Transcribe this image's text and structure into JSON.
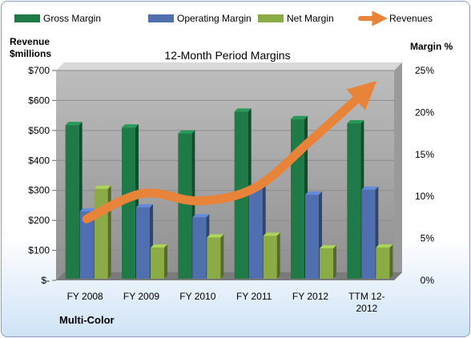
{
  "chart_data": {
    "type": "bar",
    "title": "12-Month Period Margins",
    "company": "Multi-Color",
    "ylabel_left": [
      "Revenue",
      "$millions"
    ],
    "ylabel_right": "Margin %",
    "categories": [
      "FY 2008",
      "FY 2009",
      "FY 2010",
      "FY 2011",
      "FY 2012",
      "TTM 12-2012"
    ],
    "category_lines": [
      [
        "FY 2008"
      ],
      [
        "FY 2009"
      ],
      [
        "FY 2010"
      ],
      [
        "FY 2011"
      ],
      [
        "FY 2012"
      ],
      [
        "TTM 12-",
        "2012"
      ]
    ],
    "left_axis": {
      "min": 0,
      "max": 700,
      "ticks": [
        0,
        100,
        200,
        300,
        400,
        500,
        600,
        700
      ],
      "tick_labels": [
        "$-",
        "$100",
        "$200",
        "$300",
        "$400",
        "$500",
        "$600",
        "$700"
      ]
    },
    "right_axis": {
      "min": 0,
      "max": 25,
      "ticks": [
        0,
        5,
        10,
        15,
        20,
        25
      ],
      "tick_labels": [
        "0%",
        "5%",
        "10%",
        "15%",
        "20%",
        "25%"
      ]
    },
    "series": [
      {
        "name": "Gross Margin",
        "axis": "right",
        "color": "#1f7a47",
        "values": [
          18.5,
          18.2,
          17.5,
          20.1,
          19.2,
          18.7
        ]
      },
      {
        "name": "Operating Margin",
        "axis": "right",
        "color": "#4f6fae",
        "values": [
          8.2,
          8.7,
          7.5,
          11.1,
          10.2,
          10.8
        ]
      },
      {
        "name": "Net Margin",
        "axis": "right",
        "color": "#8aab46",
        "values": [
          10.9,
          3.9,
          5.1,
          5.3,
          3.8,
          3.9
        ]
      }
    ],
    "line_series": {
      "name": "Revenues",
      "axis": "left",
      "color": "#e8833a",
      "values": [
        205,
        290,
        265,
        310,
        470,
        640
      ]
    },
    "grid": true,
    "legend_position": "top"
  }
}
